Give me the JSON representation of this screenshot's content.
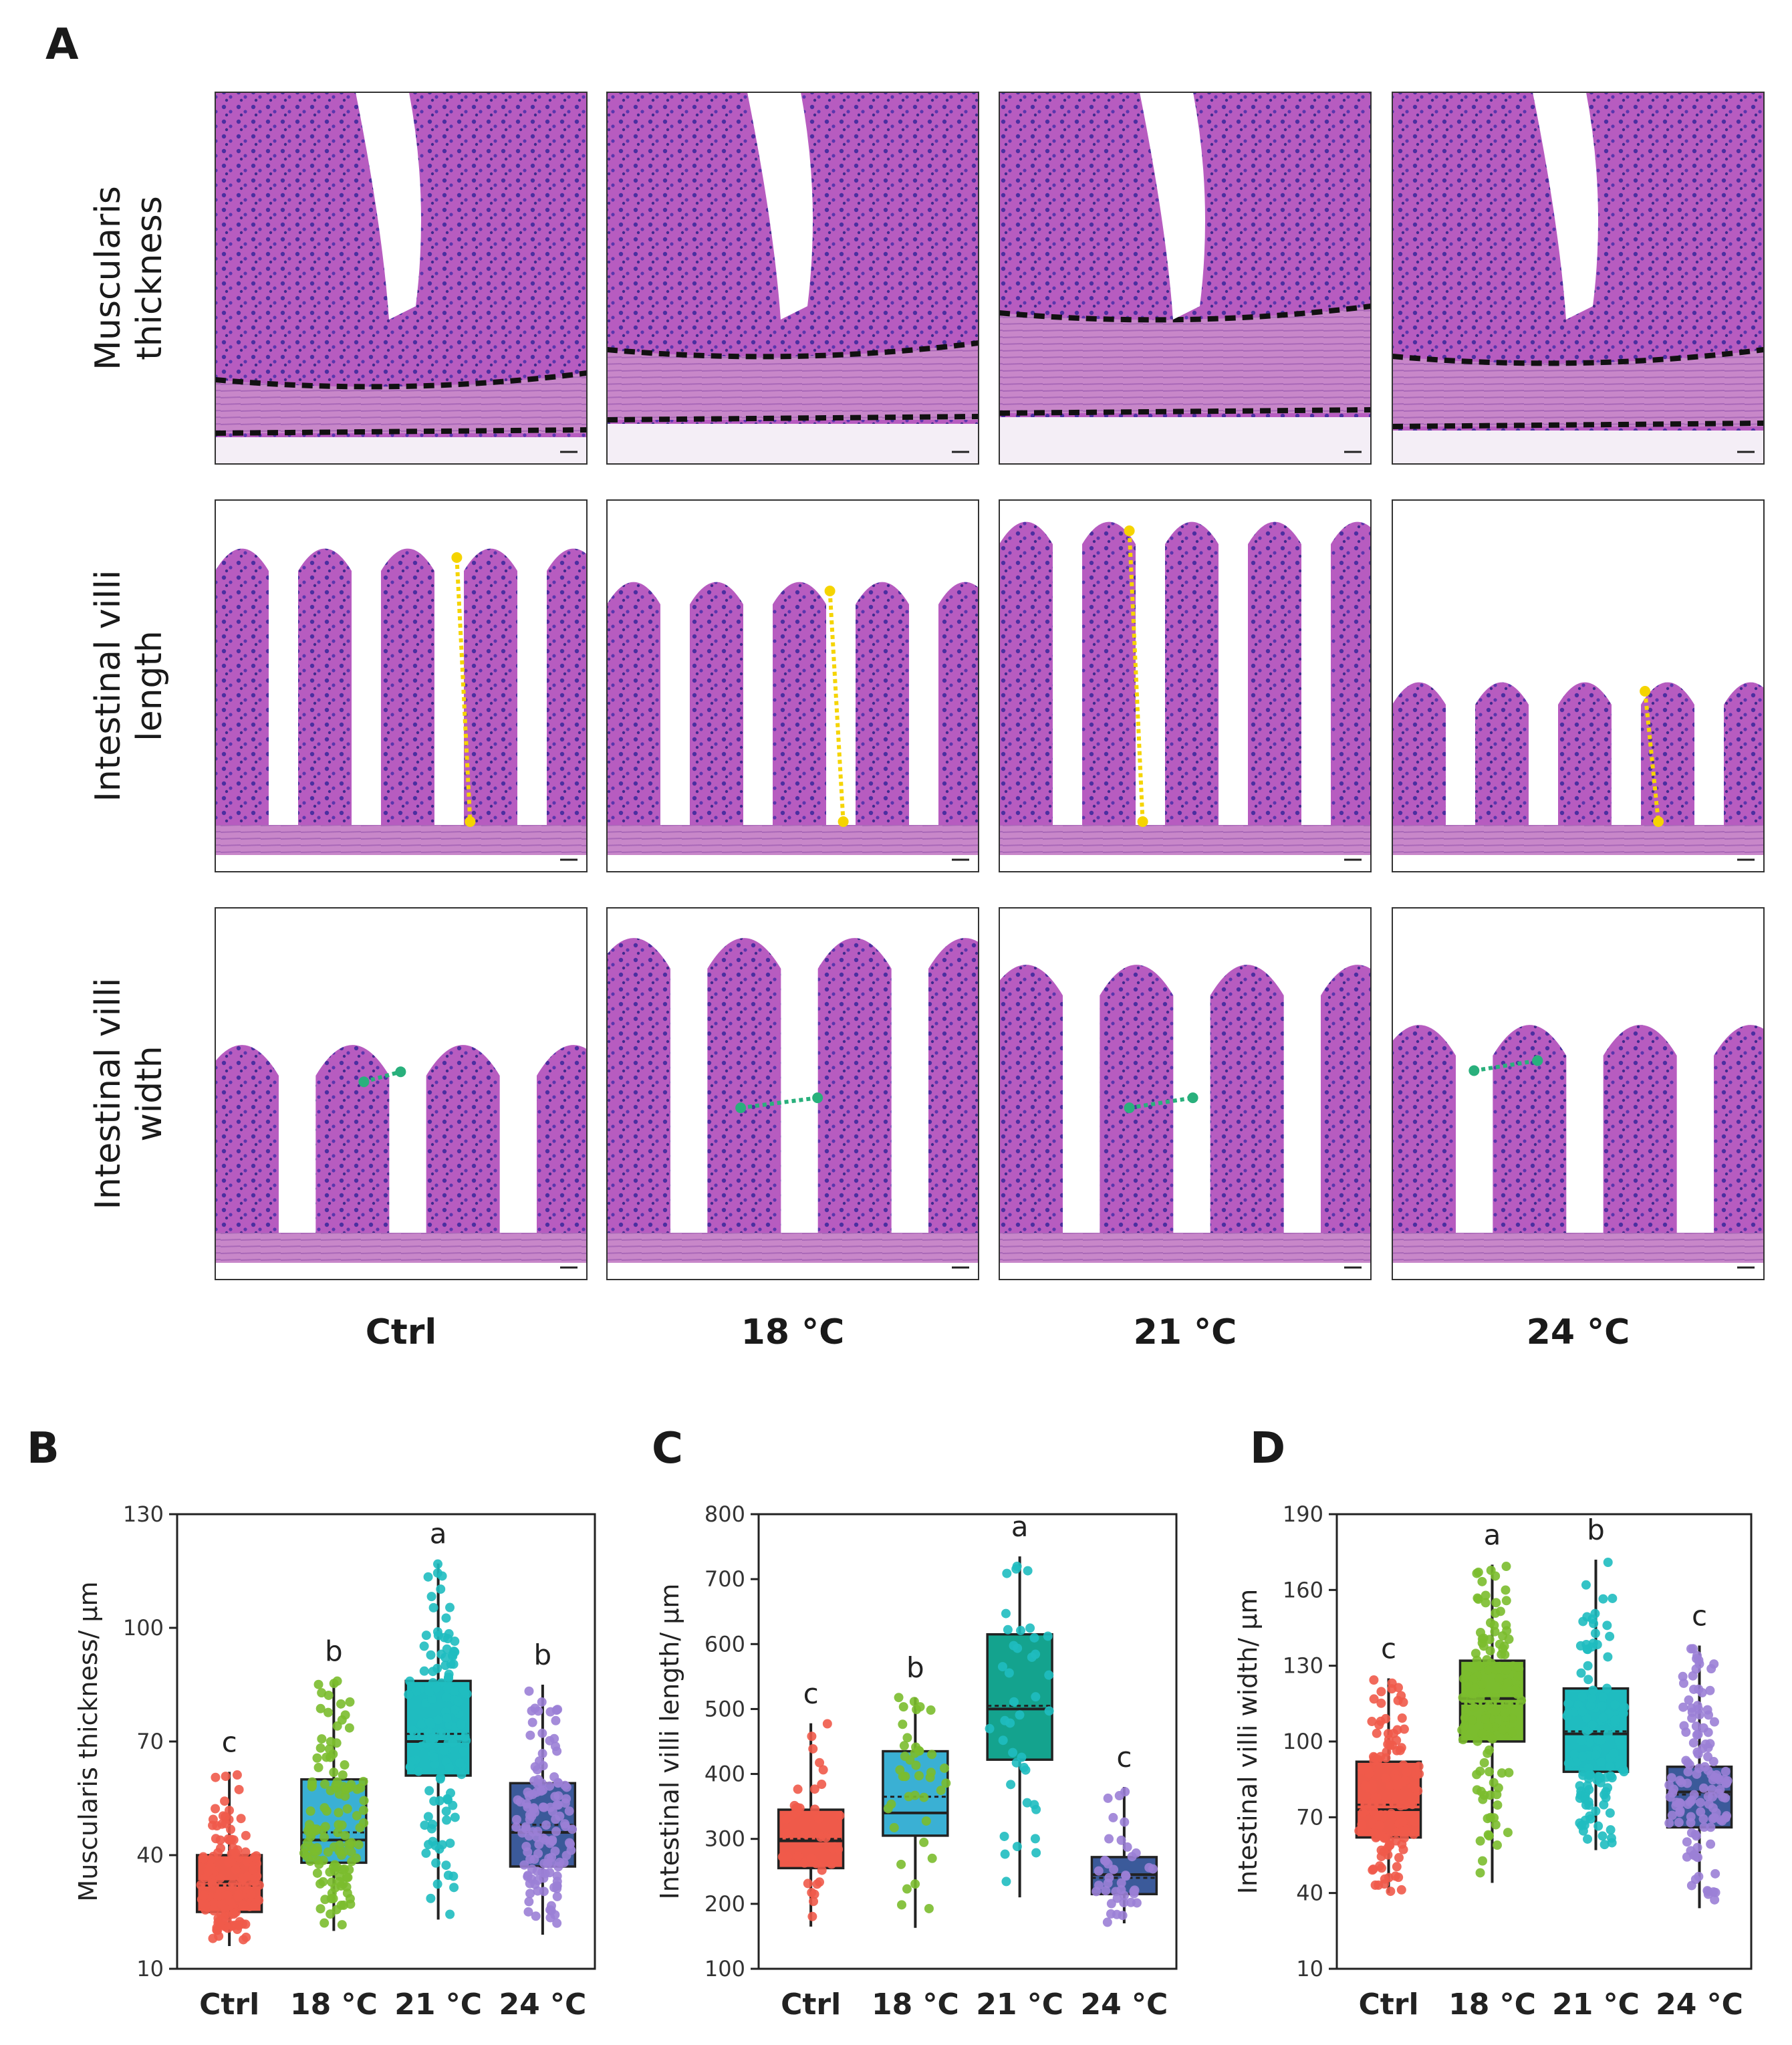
{
  "panel_a": {
    "letter": "A",
    "row_labels": [
      [
        "Muscularis",
        "thickness"
      ],
      [
        "Intestinal villi",
        "length"
      ],
      [
        "Intestinal villi",
        "width"
      ]
    ],
    "column_labels": [
      "Ctrl",
      "18 °C",
      "21 °C",
      "24 °C"
    ],
    "colors": {
      "tissue": "#b75cc0",
      "nuclei": "#4b2fa0",
      "muscle": "#c887c9",
      "length_arrow": "#f5d400",
      "width_arrow": "#29b07c",
      "muscle_line": "#111111"
    }
  },
  "chart_data": [
    {
      "letter": "B",
      "type": "box",
      "ylabel": "Muscularis thickness/ μm",
      "ylim": [
        10,
        130
      ],
      "yticks": [
        10,
        40,
        70,
        100,
        130
      ],
      "categories": [
        "Ctrl",
        "18 °C",
        "21 °C",
        "24 °C"
      ],
      "colors": [
        "#ef5a4a",
        "#7bbd2e",
        "#1fbcc0",
        "#9b7fd6"
      ],
      "box_colors": [
        "#ef5a4a",
        "#3ab0d4",
        "#1fbcc0",
        "#3b5a9a"
      ],
      "boxes": [
        {
          "whisker_low": 16,
          "q1": 25,
          "median": 33,
          "mean": 32,
          "q3": 40,
          "whisker_high": 62
        },
        {
          "whisker_low": 20,
          "q1": 38,
          "median": 44,
          "mean": 46,
          "q3": 60,
          "whisker_high": 86
        },
        {
          "whisker_low": 23,
          "q1": 61,
          "median": 70,
          "mean": 72,
          "q3": 86,
          "whisker_high": 117
        },
        {
          "whisker_low": 19,
          "q1": 37,
          "median": 46,
          "mean": 48,
          "q3": 59,
          "whisker_high": 85
        }
      ],
      "letters": [
        "c",
        "b",
        "a",
        "b"
      ]
    },
    {
      "letter": "C",
      "type": "box",
      "ylabel": "Intestinal villi length/ μm",
      "ylim": [
        100,
        800
      ],
      "yticks": [
        100,
        200,
        300,
        400,
        500,
        600,
        700,
        800
      ],
      "categories": [
        "Ctrl",
        "18 °C",
        "21 °C",
        "24 °C"
      ],
      "colors": [
        "#ef5a4a",
        "#7bbd2e",
        "#1fbcc0",
        "#9b7fd6"
      ],
      "box_colors": [
        "#ef5a4a",
        "#3ab0d4",
        "#14a38e",
        "#3b5a9a"
      ],
      "boxes": [
        {
          "whisker_low": 165,
          "q1": 255,
          "median": 297,
          "mean": 300,
          "q3": 345,
          "whisker_high": 478
        },
        {
          "whisker_low": 163,
          "q1": 305,
          "median": 340,
          "mean": 365,
          "q3": 435,
          "whisker_high": 518
        },
        {
          "whisker_low": 210,
          "q1": 422,
          "median": 500,
          "mean": 505,
          "q3": 615,
          "whisker_high": 735
        },
        {
          "whisker_low": 170,
          "q1": 215,
          "median": 245,
          "mean": 240,
          "q3": 272,
          "whisker_high": 380
        }
      ],
      "letters": [
        "c",
        "b",
        "a",
        "c"
      ]
    },
    {
      "letter": "D",
      "type": "box",
      "ylabel": "Intestinal villi width/ μm",
      "ylim": [
        10,
        190
      ],
      "yticks": [
        10,
        40,
        70,
        100,
        130,
        160,
        190
      ],
      "categories": [
        "Ctrl",
        "18 °C",
        "21 °C",
        "24 °C"
      ],
      "colors": [
        "#ef5a4a",
        "#7bbd2e",
        "#1fbcc0",
        "#9b7fd6"
      ],
      "box_colors": [
        "#ef5a4a",
        "#7bbd2e",
        "#1fbcc0",
        "#3b5a9a"
      ],
      "boxes": [
        {
          "whisker_low": 40,
          "q1": 62,
          "median": 73,
          "mean": 75,
          "q3": 92,
          "whisker_high": 125
        },
        {
          "whisker_low": 44,
          "q1": 100,
          "median": 117,
          "mean": 115,
          "q3": 132,
          "whisker_high": 170
        },
        {
          "whisker_low": 57,
          "q1": 88,
          "median": 103,
          "mean": 104,
          "q3": 121,
          "whisker_high": 172
        },
        {
          "whisker_low": 34,
          "q1": 66,
          "median": 80,
          "mean": 79,
          "q3": 90,
          "whisker_high": 138
        }
      ],
      "letters": [
        "c",
        "a",
        "b",
        "c"
      ]
    }
  ]
}
